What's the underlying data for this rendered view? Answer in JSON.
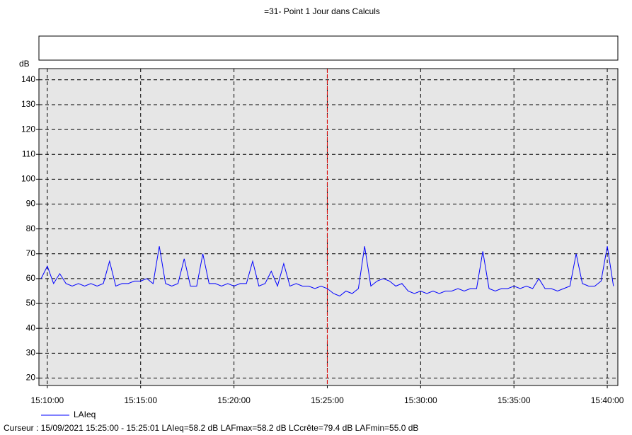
{
  "chart_data": {
    "type": "line",
    "title": "=31- Point 1 Jour dans Calculs",
    "ylabel": "dB",
    "footer": "Curseur : 15/09/2021 15:25:00 - 15:25:01  LAIeq=58.2 dB  LAFmax=58.2 dB  LCcrête=79.4 dB  LAFmin=55.0 dB",
    "x": [
      "15:09:40",
      "15:10:00",
      "15:10:20",
      "15:10:40",
      "15:11:00",
      "15:11:20",
      "15:11:40",
      "15:12:00",
      "15:12:20",
      "15:12:40",
      "15:13:00",
      "15:13:20",
      "15:13:40",
      "15:14:00",
      "15:14:20",
      "15:14:40",
      "15:15:00",
      "15:15:20",
      "15:15:40",
      "15:16:00",
      "15:16:20",
      "15:16:40",
      "15:17:00",
      "15:17:20",
      "15:17:40",
      "15:18:00",
      "15:18:20",
      "15:18:40",
      "15:19:00",
      "15:19:20",
      "15:19:40",
      "15:20:00",
      "15:20:20",
      "15:20:40",
      "15:21:00",
      "15:21:20",
      "15:21:40",
      "15:22:00",
      "15:22:20",
      "15:22:40",
      "15:23:00",
      "15:23:20",
      "15:23:40",
      "15:24:00",
      "15:24:20",
      "15:24:40",
      "15:25:00",
      "15:25:20",
      "15:25:40",
      "15:26:00",
      "15:26:20",
      "15:26:40",
      "15:27:00",
      "15:27:20",
      "15:27:40",
      "15:28:00",
      "15:28:20",
      "15:28:40",
      "15:29:00",
      "15:29:20",
      "15:29:40",
      "15:30:00",
      "15:30:20",
      "15:30:40",
      "15:31:00",
      "15:31:20",
      "15:31:40",
      "15:32:00",
      "15:32:20",
      "15:32:40",
      "15:33:00",
      "15:33:20",
      "15:33:40",
      "15:34:00",
      "15:34:20",
      "15:34:40",
      "15:35:00",
      "15:35:20",
      "15:35:40",
      "15:36:00",
      "15:36:20",
      "15:36:40",
      "15:37:00",
      "15:37:20",
      "15:37:40",
      "15:38:00",
      "15:38:20",
      "15:38:40",
      "15:39:00",
      "15:39:20",
      "15:39:40",
      "15:40:00",
      "15:40:20"
    ],
    "series": [
      {
        "name": "LAIeq",
        "color": "#0000ff",
        "values": [
          60,
          65,
          58,
          62,
          58,
          57,
          58,
          57,
          58,
          57,
          58,
          67,
          57,
          58,
          58,
          59,
          59,
          60,
          58,
          73,
          58,
          57,
          58,
          68,
          57,
          57,
          70,
          58,
          58,
          57,
          58,
          57,
          58,
          58,
          67,
          57,
          58,
          63,
          57,
          66,
          57,
          58,
          57,
          57,
          56,
          57,
          56,
          54,
          53,
          55,
          54,
          56,
          73,
          57,
          59,
          60,
          59,
          57,
          58,
          55,
          54,
          55,
          54,
          55,
          54,
          55,
          55,
          56,
          55,
          56,
          56,
          71,
          56,
          55,
          56,
          56,
          57,
          56,
          57,
          56,
          60,
          56,
          56,
          55,
          56,
          57,
          70,
          58,
          57,
          57,
          59,
          73,
          57
        ]
      }
    ],
    "cursor_x": "15:25:00",
    "xlim": [
      "15:09:33",
      "15:40:34"
    ],
    "xticks": [
      "15:10:00",
      "15:15:00",
      "15:20:00",
      "15:25:00",
      "15:30:00",
      "15:35:00",
      "15:40:00"
    ],
    "ylim": [
      17,
      144.5
    ],
    "yticks": [
      20,
      30,
      40,
      50,
      60,
      70,
      80,
      90,
      100,
      110,
      120,
      130,
      140
    ],
    "grid": true
  }
}
